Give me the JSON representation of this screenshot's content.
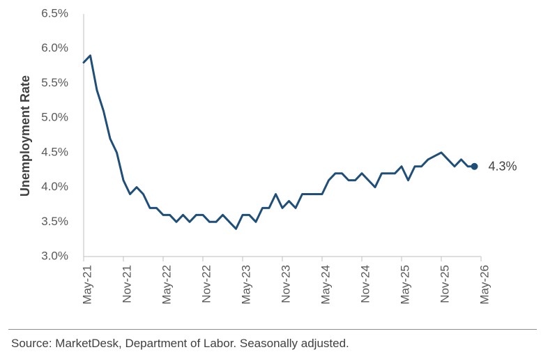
{
  "chart_data": {
    "type": "line",
    "title": "",
    "xlabel": "",
    "ylabel": "Unemployment Rate",
    "ylim": [
      3.0,
      6.5
    ],
    "y_ticks": [
      3.0,
      3.5,
      4.0,
      4.5,
      5.0,
      5.5,
      6.0,
      6.5
    ],
    "y_tick_labels": [
      "3.0%",
      "3.5%",
      "4.0%",
      "4.5%",
      "5.0%",
      "5.5%",
      "6.0%",
      "6.5%"
    ],
    "x_tick_labels": [
      "May-21",
      "Nov-21",
      "May-22",
      "Nov-22",
      "May-23",
      "Nov-23",
      "May-24",
      "Nov-24",
      "May-25",
      "Nov-25",
      "May-26"
    ],
    "x_start": "2021-05",
    "x_end": "2026-05",
    "grid": false,
    "series_color": "#1f4e79",
    "series": [
      {
        "x": [
          "2021-05",
          "2021-06",
          "2021-07",
          "2021-08",
          "2021-09",
          "2021-10",
          "2021-11",
          "2021-12",
          "2022-01",
          "2022-02",
          "2022-03",
          "2022-04",
          "2022-05",
          "2022-06",
          "2022-07",
          "2022-08",
          "2022-09",
          "2022-10",
          "2022-11",
          "2022-12",
          "2023-01",
          "2023-02",
          "2023-03",
          "2023-04",
          "2023-05",
          "2023-06",
          "2023-07",
          "2023-08",
          "2023-09",
          "2023-10",
          "2023-11",
          "2023-12",
          "2024-01",
          "2024-02",
          "2024-03",
          "2024-04",
          "2024-05",
          "2024-06",
          "2024-07",
          "2024-08",
          "2024-09",
          "2024-10",
          "2024-11",
          "2024-12",
          "2025-01",
          "2025-02",
          "2025-03",
          "2025-04",
          "2025-05",
          "2025-06",
          "2025-07",
          "2025-08",
          "2025-09",
          "2025-10",
          "2025-11",
          "2025-12",
          "2026-01",
          "2026-02",
          "2026-03",
          "2026-04"
        ],
        "values": [
          5.8,
          5.9,
          5.4,
          5.1,
          4.7,
          4.5,
          4.1,
          3.9,
          4.0,
          3.9,
          3.7,
          3.7,
          3.6,
          3.6,
          3.5,
          3.6,
          3.5,
          3.6,
          3.6,
          3.5,
          3.5,
          3.6,
          3.5,
          3.4,
          3.6,
          3.6,
          3.5,
          3.7,
          3.7,
          3.9,
          3.7,
          3.8,
          3.7,
          3.9,
          3.9,
          3.9,
          3.9,
          4.1,
          4.2,
          4.2,
          4.1,
          4.1,
          4.2,
          4.1,
          4.0,
          4.2,
          4.2,
          4.2,
          4.3,
          4.1,
          4.3,
          4.3,
          4.4,
          4.45,
          4.5,
          4.4,
          4.3,
          4.4,
          4.3,
          4.3
        ]
      }
    ],
    "end_label": "4.3%"
  },
  "source": "Source: MarketDesk, Department of Labor. Seasonally adjusted."
}
